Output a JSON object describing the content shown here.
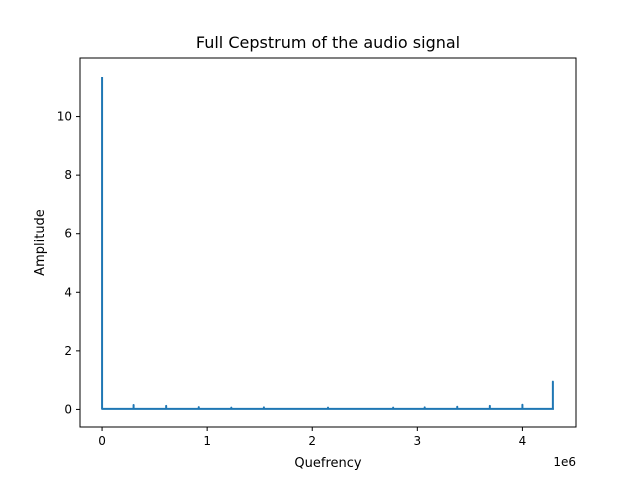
{
  "chart_data": {
    "type": "line",
    "title": "Full Cepstrum of the audio signal",
    "xlabel": "Quefrency",
    "ylabel": "Amplitude",
    "x_offset_label": "1e6",
    "x_scale": 1000000,
    "xlim": [
      -210000,
      4510000
    ],
    "ylim": [
      -0.6,
      12.0
    ],
    "x_ticks": [
      0,
      1000000,
      2000000,
      3000000,
      4000000
    ],
    "x_tick_labels": [
      "0",
      "1",
      "2",
      "3",
      "4"
    ],
    "y_ticks": [
      0,
      2,
      4,
      6,
      8,
      10
    ],
    "y_tick_labels": [
      "0",
      "2",
      "4",
      "6",
      "8",
      "10"
    ],
    "grid": false,
    "legend": "none",
    "colors": {
      "series": "#1f77b4"
    },
    "series": [
      {
        "x": [
          0,
          0,
          0,
          300000,
          300000,
          300000,
          610000,
          610000,
          610000,
          920000,
          920000,
          920000,
          1230000,
          1230000,
          1230000,
          1540000,
          1540000,
          1540000,
          2150000,
          2150000,
          2150000,
          2770000,
          2770000,
          2770000,
          3070000,
          3070000,
          3070000,
          3380000,
          3380000,
          3380000,
          3690000,
          3690000,
          3690000,
          4000000,
          4000000,
          4000000,
          4290000,
          4290000,
          4290000,
          4300000
        ],
        "values": [
          11.35,
          0.05,
          0.02,
          0.02,
          0.15,
          0.02,
          0.02,
          0.12,
          0.02,
          0.02,
          0.08,
          0.02,
          0.02,
          0.06,
          0.02,
          0.02,
          0.07,
          0.02,
          0.02,
          0.06,
          0.02,
          0.02,
          0.06,
          0.02,
          0.02,
          0.07,
          0.02,
          0.02,
          0.09,
          0.02,
          0.02,
          0.12,
          0.02,
          0.02,
          0.16,
          0.02,
          0.02,
          0.95,
          0.02,
          0.02
        ]
      }
    ]
  }
}
